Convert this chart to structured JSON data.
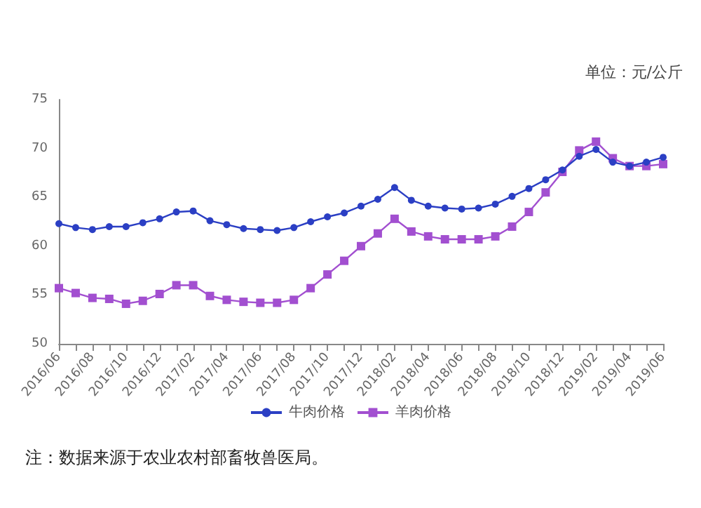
{
  "chart_data": {
    "type": "line",
    "ylabel": "单位：元/公斤",
    "categories": [
      "2016/06",
      null,
      "2016/08",
      null,
      "2016/10",
      null,
      "2016/12",
      null,
      "2017/02",
      null,
      "2017/04",
      null,
      "2017/06",
      null,
      "2017/08",
      null,
      "2017/10",
      null,
      "2017/12",
      null,
      "2018/02",
      null,
      "2018/04",
      null,
      "2018/06",
      null,
      "2018/08",
      null,
      "2018/10",
      null,
      "2018/12",
      null,
      "2019/02",
      null,
      "2019/04",
      null,
      "2019/06"
    ],
    "series": [
      {
        "name": "牛肉价格",
        "color": "#2b3fc4",
        "marker": "circle",
        "values": [
          62.3,
          61.9,
          61.7,
          62.0,
          62.0,
          62.4,
          62.8,
          63.5,
          63.6,
          62.6,
          62.2,
          61.8,
          61.7,
          61.6,
          61.9,
          62.5,
          63.0,
          63.4,
          64.1,
          64.8,
          66.0,
          64.7,
          64.1,
          63.9,
          63.8,
          63.9,
          64.3,
          65.1,
          65.9,
          66.8,
          67.8,
          69.2,
          69.9,
          68.6,
          68.2,
          68.6,
          69.1
        ]
      },
      {
        "name": "羊肉价格",
        "color": "#a24fd0",
        "marker": "square",
        "values": [
          55.7,
          55.2,
          54.7,
          54.6,
          54.1,
          54.4,
          55.1,
          56.0,
          56.0,
          54.9,
          54.5,
          54.3,
          54.2,
          54.2,
          54.5,
          55.7,
          57.1,
          58.5,
          60.0,
          61.3,
          62.8,
          61.5,
          61.0,
          60.7,
          60.7,
          60.7,
          61.0,
          62.0,
          63.5,
          65.5,
          67.6,
          69.8,
          70.7,
          69.0,
          68.2,
          68.2,
          68.4
        ]
      }
    ],
    "ylim": [
      50,
      75
    ],
    "yticks": [
      50,
      55,
      60,
      65,
      70,
      75
    ],
    "grid": false,
    "legend": "bottom",
    "line_style": "solid",
    "annotations": [
      "注：数据来源于农业农村部畜牧兽医局。"
    ]
  }
}
